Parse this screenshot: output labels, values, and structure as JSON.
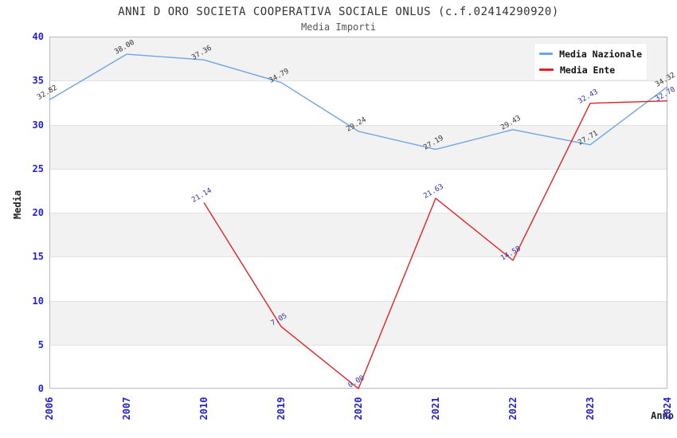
{
  "chart_data": {
    "type": "line",
    "title": "ANNI D ORO SOCIETA COOPERATIVA SOCIALE ONLUS (c.f.02414290920)",
    "subtitle": "Media Importi",
    "ylabel": "Media",
    "xlabel": "Anno",
    "ylim": [
      0,
      40
    ],
    "ytick_step": 5,
    "yticks": [
      0,
      5,
      10,
      15,
      20,
      25,
      30,
      35,
      40
    ],
    "categories": [
      "2006",
      "2007",
      "2010",
      "2019",
      "2020",
      "2021",
      "2022",
      "2023",
      "2024"
    ],
    "series": [
      {
        "name": "Media Nazionale",
        "color": "#6ea5e6",
        "label_color": "#333333",
        "values": [
          32.82,
          38.0,
          37.36,
          34.79,
          29.24,
          27.19,
          29.43,
          27.71,
          34.32
        ]
      },
      {
        "name": "Media Ente",
        "color": "#e02424",
        "label_color": "#3333aa",
        "values": [
          null,
          null,
          21.14,
          7.05,
          0.0,
          21.63,
          14.58,
          32.43,
          32.7
        ]
      }
    ],
    "legend_position": "top-right",
    "grid": "horizontal-bands",
    "band_color": "#f2f2f2",
    "tick_color": "#2323cc",
    "title_color": "#333333",
    "subtitle_color": "#555555"
  }
}
